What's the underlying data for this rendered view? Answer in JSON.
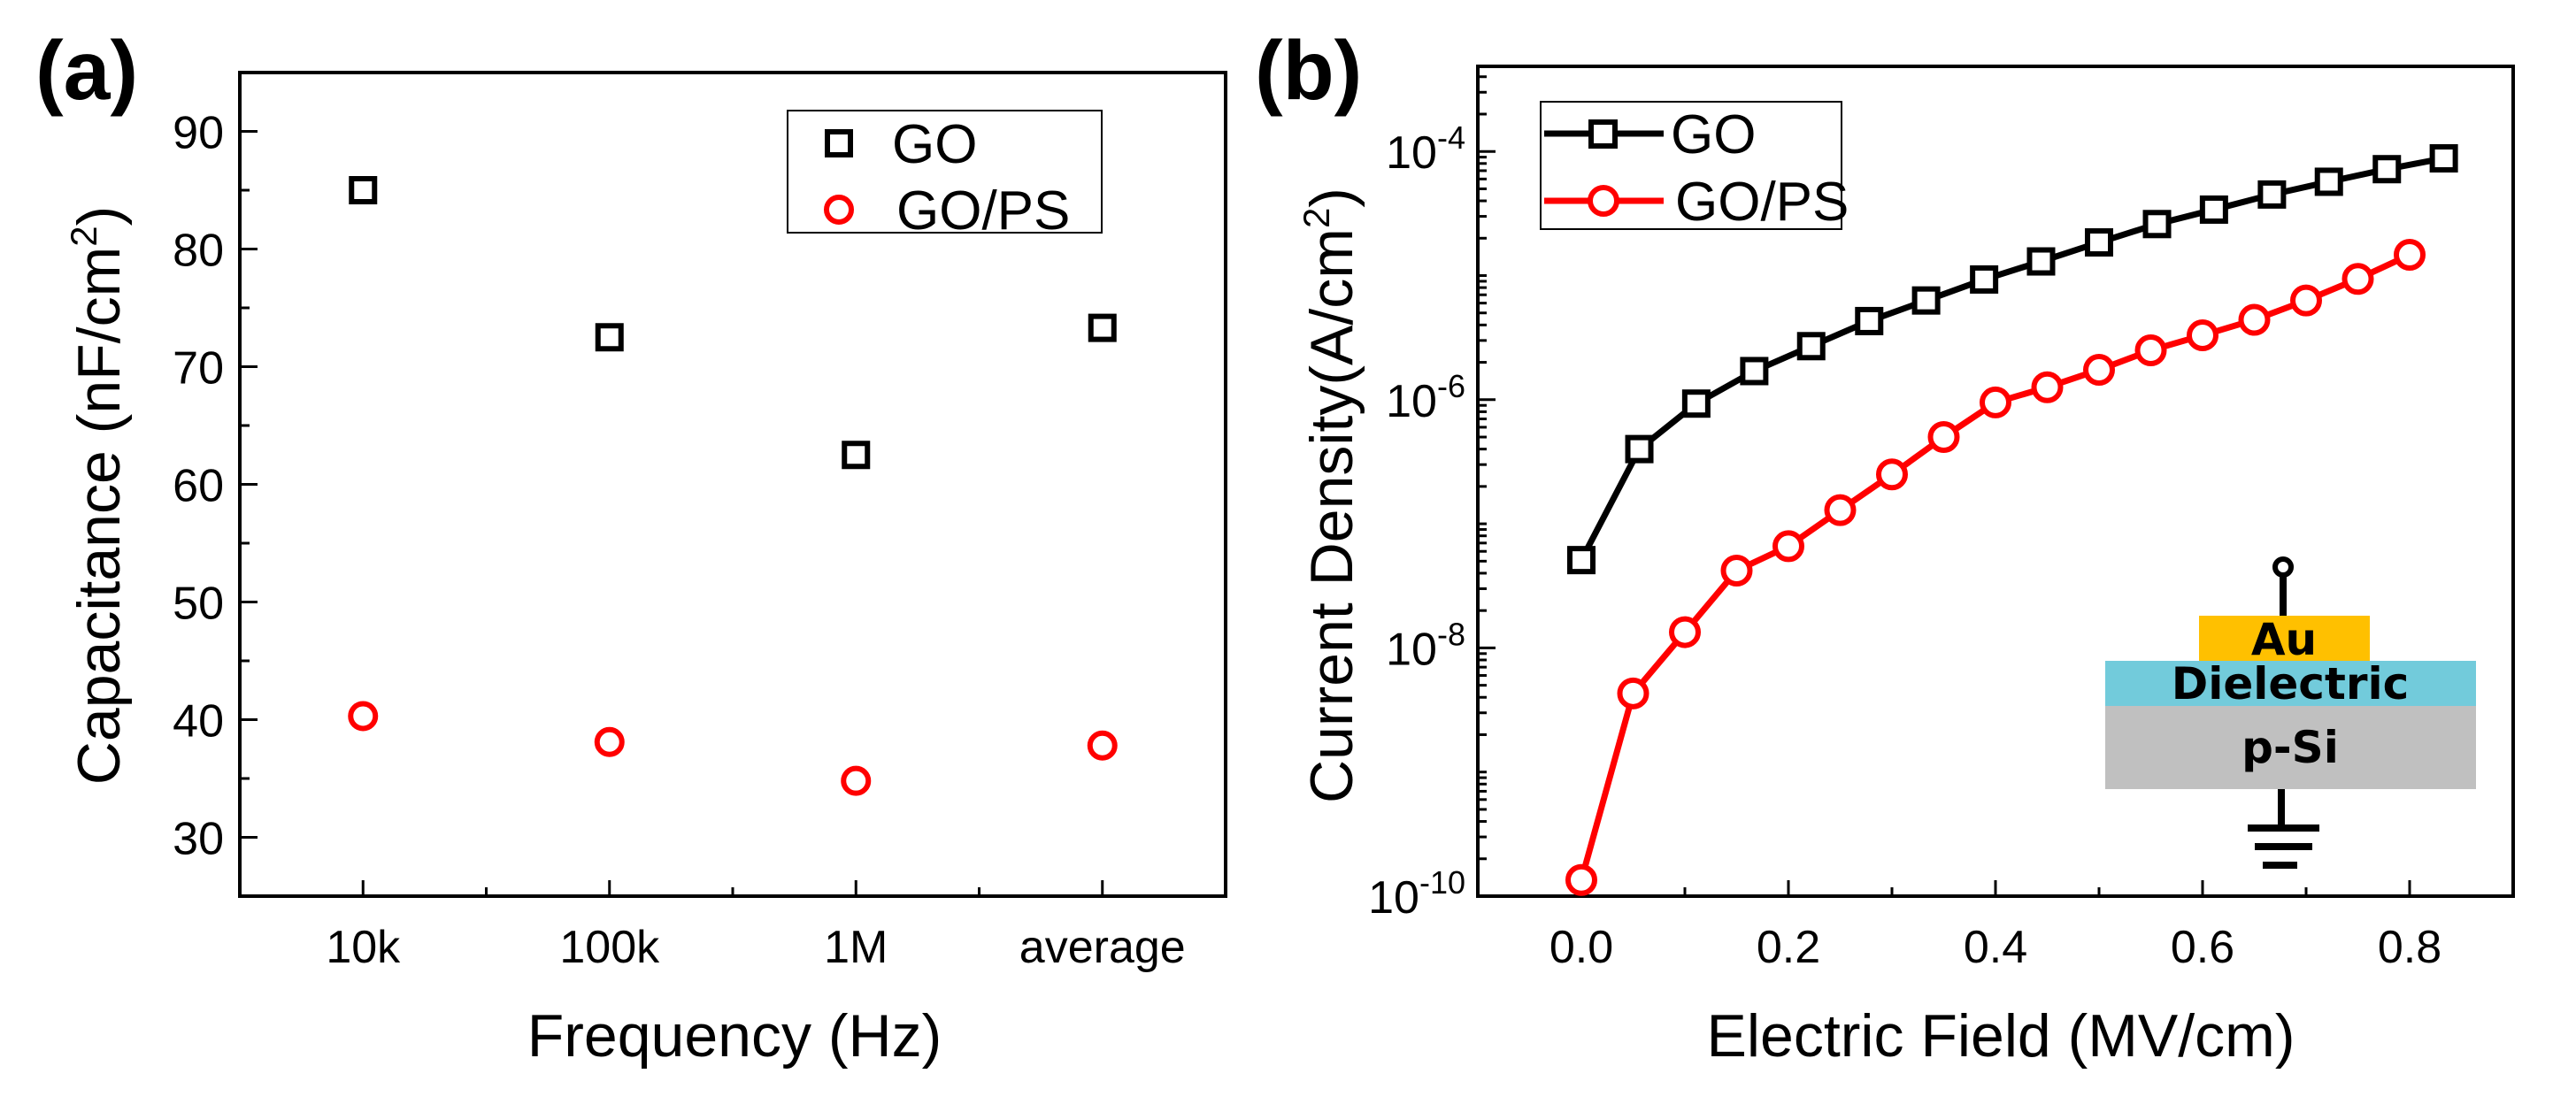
{
  "colors": {
    "GO": "#000000",
    "GO/PS": "#ff0000",
    "Au": "#ffc000",
    "Dielectric": "#72cbdb",
    "p-Si": "#c0c0c0"
  },
  "chart_data": [
    {
      "panel_label": "(a)",
      "type": "scatter",
      "categories": [
        "10k",
        "100k",
        "1M",
        "average"
      ],
      "xlabel": "Frequency (Hz)",
      "ylabel": {
        "main": "Capacitance (nF/cm",
        "sup": "2",
        "end": ")"
      },
      "ylim": [
        25,
        95
      ],
      "yticks": [
        30,
        40,
        50,
        60,
        70,
        80,
        90
      ],
      "grid": false,
      "legend_position": "top-right",
      "series": [
        {
          "name": "GO",
          "marker": "square",
          "color": "#000000",
          "values": [
            85.0,
            72.5,
            62.5,
            73.3
          ]
        },
        {
          "name": "GO/PS",
          "marker": "circle",
          "color": "#ff0000",
          "values": [
            40.3,
            38.1,
            34.8,
            37.8
          ]
        }
      ]
    },
    {
      "panel_label": "(b)",
      "type": "line",
      "xlabel": "Electric Field (MV/cm)",
      "ylabel": {
        "main": "Current Density(A/cm",
        "sup": "2",
        "end": ")"
      },
      "xlim": [
        -0.1,
        0.9
      ],
      "xticks": [
        "0.0",
        "0.2",
        "0.4",
        "0.6",
        "0.8"
      ],
      "ylim": [
        1e-10,
        0.000485
      ],
      "yscale": "log",
      "yticks": [
        {
          "base": "10",
          "exp": "-10"
        },
        {
          "base": "10",
          "exp": "-8"
        },
        {
          "base": "10",
          "exp": "-6"
        },
        {
          "base": "10",
          "exp": "-4"
        }
      ],
      "grid": false,
      "legend_position": "top-left",
      "series": [
        {
          "name": "GO",
          "marker": "square",
          "color": "#000000",
          "x": [
            0.0,
            0.056,
            0.111,
            0.167,
            0.222,
            0.278,
            0.333,
            0.389,
            0.444,
            0.5,
            0.556,
            0.611,
            0.667,
            0.722,
            0.778,
            0.833
          ],
          "y": [
            5.1e-08,
            4e-07,
            9.3e-07,
            1.7e-06,
            2.7e-06,
            4.3e-06,
            6.3e-06,
            9.3e-06,
            1.3e-05,
            1.85e-05,
            2.6e-05,
            3.4e-05,
            4.5e-05,
            5.7e-05,
            7.2e-05,
            8.8e-05
          ]
        },
        {
          "name": "GO/PS",
          "marker": "circle",
          "color": "#ff0000",
          "x": [
            0.0,
            0.05,
            0.1,
            0.15,
            0.2,
            0.25,
            0.3,
            0.35,
            0.4,
            0.45,
            0.5,
            0.55,
            0.6,
            0.65,
            0.7,
            0.75,
            0.8
          ],
          "y": [
            1.35e-10,
            4.3e-09,
            1.34e-08,
            4.2e-08,
            6.6e-08,
            1.29e-07,
            2.5e-07,
            5e-07,
            9.5e-07,
            1.26e-06,
            1.74e-06,
            2.5e-06,
            3.3e-06,
            4.4e-06,
            6.3e-06,
            9.4e-06,
            1.47e-05
          ]
        }
      ],
      "inset": {
        "layers": [
          "Au",
          "Dielectric",
          "p-Si"
        ]
      }
    }
  ]
}
